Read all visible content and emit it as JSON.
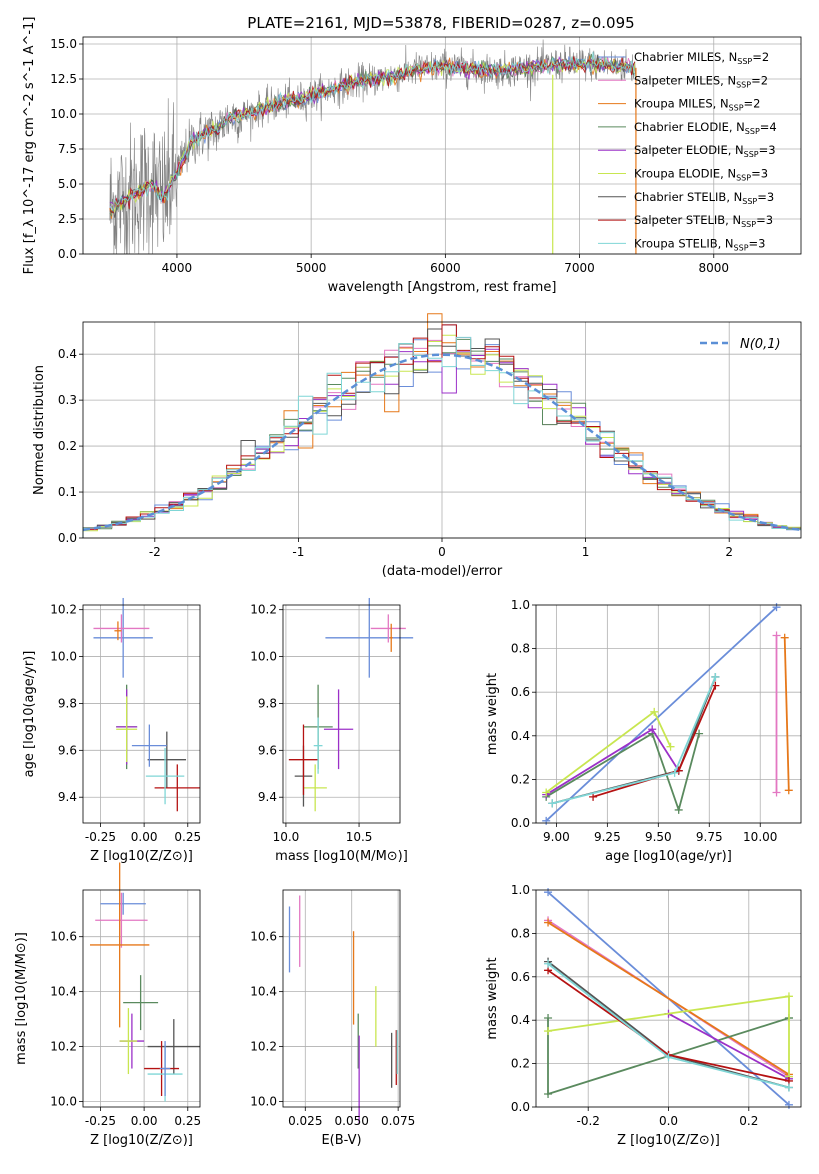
{
  "title": "PLATE=2161, MJD=53878, FIBERID=0287, z=0.095",
  "colors": {
    "chabrier_miles": "#6a8dd9",
    "salpeter_miles": "#e377c2",
    "kroupa_miles": "#e6781a",
    "chabrier_elodie": "#5a8a5e",
    "salpeter_elodie": "#9b30c8",
    "kroupa_elodie": "#c8e650",
    "chabrier_stelib": "#555555",
    "salpeter_stelib": "#b51212",
    "kroupa_stelib": "#7fd6d6"
  },
  "chart_data": [
    {
      "id": "spectrum",
      "type": "line",
      "title": "PLATE=2161, MJD=53878, FIBERID=0287, z=0.095",
      "xlabel": "wavelength [Angstrom, rest frame]",
      "ylabel": "Flux [f_λ 10^-17 erg cm^-2 s^-1 A^-1]",
      "xlim": [
        3300,
        8650
      ],
      "ylim": [
        0,
        15.5
      ],
      "xticks": [
        4000,
        5000,
        6000,
        7000,
        8000
      ],
      "yticks": [
        0.0,
        2.5,
        5.0,
        7.5,
        10.0,
        12.5,
        15.0
      ],
      "legend_position": "top-right",
      "continuum": {
        "x": [
          3500,
          3600,
          3700,
          3800,
          3900,
          4000,
          4100,
          4200,
          4300,
          4400,
          4500,
          4600,
          4700,
          4800,
          4900,
          5000,
          5200,
          5400,
          5600,
          5800,
          6000,
          6200,
          6400,
          6600,
          6800,
          7000,
          7200,
          7400
        ],
        "y": [
          3.2,
          3.8,
          4.4,
          5.0,
          4.0,
          5.8,
          7.9,
          8.6,
          8.9,
          9.8,
          9.9,
          10.3,
          10.6,
          10.9,
          11.0,
          11.3,
          11.9,
          12.4,
          12.7,
          13.2,
          13.4,
          13.2,
          13.1,
          13.3,
          13.5,
          13.6,
          13.5,
          13.3
        ]
      },
      "series": [
        {
          "name": "Chabrier MILES, N_SSP=2",
          "n_ssp": "2"
        },
        {
          "name": "Salpeter MILES, N_SSP=2",
          "n_ssp": "2"
        },
        {
          "name": "Kroupa MILES, N_SSP=2",
          "n_ssp": "2"
        },
        {
          "name": "Chabrier ELODIE, N_SSP=4",
          "n_ssp": "4"
        },
        {
          "name": "Salpeter ELODIE, N_SSP=3",
          "n_ssp": "3"
        },
        {
          "name": "Kroupa ELODIE, N_SSP=3",
          "n_ssp": "3"
        },
        {
          "name": "Chabrier STELIB, N_SSP=3",
          "n_ssp": "3"
        },
        {
          "name": "Salpeter STELIB, N_SSP=3",
          "n_ssp": "3"
        },
        {
          "name": "Kroupa STELIB, N_SSP=3",
          "n_ssp": "3"
        }
      ]
    },
    {
      "id": "residuals",
      "type": "area",
      "xlabel": "(data-model)/error",
      "ylabel": "Normed distribution",
      "xlim": [
        -2.5,
        2.5
      ],
      "ylim": [
        0,
        0.47
      ],
      "xticks": [
        -2,
        -1,
        0,
        1,
        2
      ],
      "yticks": [
        0.0,
        0.1,
        0.2,
        0.3,
        0.4
      ],
      "legend": "N(0,1)",
      "legend_position": "top-right",
      "bin_width": 0.1
    },
    {
      "id": "age-vs-Z",
      "type": "scatter",
      "xlabel": "Z [log10(Z/Z⊙)]",
      "ylabel": "age [log10(age/yr)]",
      "xlim": [
        -0.35,
        0.32
      ],
      "ylim": [
        9.29,
        10.22
      ],
      "xticks": [
        -0.25,
        0.0,
        0.25
      ],
      "yticks": [
        9.4,
        9.6,
        9.8,
        10.0,
        10.2
      ],
      "points": [
        {
          "x": -0.12,
          "y": 10.08,
          "xerr": 0.17,
          "yerr": 0.17
        },
        {
          "x": -0.13,
          "y": 10.12,
          "xerr": 0.16,
          "yerr": 0.06
        },
        {
          "x": -0.15,
          "y": 10.11,
          "xerr": 0.02,
          "yerr": 0.04
        },
        {
          "x": -0.1,
          "y": 9.7,
          "xerr": 0.06,
          "yerr": 0.18
        },
        {
          "x": -0.1,
          "y": 9.7,
          "xerr": 0.06,
          "yerr": 0.16
        },
        {
          "x": -0.1,
          "y": 9.69,
          "xerr": 0.06,
          "yerr": 0.14
        },
        {
          "x": 0.13,
          "y": 9.56,
          "xerr": 0.11,
          "yerr": 0.12
        },
        {
          "x": 0.19,
          "y": 9.44,
          "xerr": 0.13,
          "yerr": 0.1
        },
        {
          "x": 0.12,
          "y": 9.49,
          "xerr": 0.11,
          "yerr": 0.12
        },
        {
          "x": 0.03,
          "y": 9.62,
          "xerr": 0.1,
          "yerr": 0.09
        }
      ]
    },
    {
      "id": "age-vs-mass",
      "type": "scatter",
      "xlabel": "mass [log10(M/M⊙)]",
      "xlim": [
        9.98,
        10.78
      ],
      "ylim": [
        9.29,
        10.22
      ],
      "xticks": [
        10.0,
        10.5
      ],
      "yticks": [
        9.4,
        9.6,
        9.8,
        10.0,
        10.2
      ],
      "points": [
        {
          "x": 10.57,
          "y": 10.08,
          "xerr": 0.3,
          "yerr": 0.17
        },
        {
          "x": 10.7,
          "y": 10.12,
          "xerr": 0.12,
          "yerr": 0.06
        },
        {
          "x": 10.72,
          "y": 10.08,
          "xerr": 0.01,
          "yerr": 0.06
        },
        {
          "x": 10.22,
          "y": 9.7,
          "xerr": 0.1,
          "yerr": 0.18
        },
        {
          "x": 10.36,
          "y": 9.69,
          "xerr": 0.1,
          "yerr": 0.17
        },
        {
          "x": 10.2,
          "y": 9.44,
          "xerr": 0.08,
          "yerr": 0.1
        },
        {
          "x": 10.12,
          "y": 9.49,
          "xerr": 0.06,
          "yerr": 0.13
        },
        {
          "x": 10.12,
          "y": 9.56,
          "xerr": 0.1,
          "yerr": 0.15
        },
        {
          "x": 10.22,
          "y": 9.62,
          "xerr": 0.03,
          "yerr": 0.12
        }
      ]
    },
    {
      "id": "massweight-vs-age",
      "type": "line",
      "xlabel": "age [log10(age/yr)]",
      "ylabel": "mass weight",
      "xlim": [
        8.9,
        10.2
      ],
      "ylim": [
        0.0,
        1.0
      ],
      "xticks": [
        9.0,
        9.25,
        9.5,
        9.75,
        10.0
      ],
      "yticks": [
        0.0,
        0.2,
        0.4,
        0.6,
        0.8,
        1.0
      ],
      "series": [
        {
          "name": "Chabrier MILES",
          "x": [
            8.95,
            10.08
          ],
          "y": [
            0.01,
            0.99
          ]
        },
        {
          "name": "Salpeter MILES",
          "x": [
            10.08,
            10.08
          ],
          "y": [
            0.86,
            0.14
          ]
        },
        {
          "name": "Kroupa MILES",
          "x": [
            10.12,
            10.14
          ],
          "y": [
            0.85,
            0.15
          ]
        },
        {
          "name": "Chabrier ELODIE",
          "x": [
            8.95,
            9.47,
            9.6,
            9.7
          ],
          "y": [
            0.12,
            0.41,
            0.06,
            0.41
          ]
        },
        {
          "name": "Salpeter ELODIE",
          "x": [
            8.95,
            9.47,
            9.6
          ],
          "y": [
            0.13,
            0.43,
            0.24
          ]
        },
        {
          "name": "Kroupa ELODIE",
          "x": [
            8.95,
            9.48,
            9.56
          ],
          "y": [
            0.14,
            0.51,
            0.35
          ]
        },
        {
          "name": "Chabrier STELIB",
          "x": [
            8.98,
            9.6,
            9.78
          ],
          "y": [
            0.09,
            0.24,
            0.67
          ]
        },
        {
          "name": "Salpeter STELIB",
          "x": [
            9.18,
            9.6,
            9.78
          ],
          "y": [
            0.12,
            0.24,
            0.63
          ]
        },
        {
          "name": "Kroupa STELIB",
          "x": [
            8.98,
            9.58,
            9.78
          ],
          "y": [
            0.09,
            0.23,
            0.67
          ]
        }
      ]
    },
    {
      "id": "mass-vs-Z",
      "type": "scatter",
      "xlabel": "Z [log10(Z/Z⊙)]",
      "ylabel": "mass [log10(M/M⊙)]",
      "xlim": [
        -0.35,
        0.32
      ],
      "ylim": [
        9.98,
        10.77
      ],
      "xticks": [
        -0.25,
        0.0,
        0.25
      ],
      "yticks": [
        10.0,
        10.2,
        10.4,
        10.6
      ],
      "points": [
        {
          "x": -0.12,
          "y": 10.72,
          "xerr": 0.13,
          "yerr": 0.04
        },
        {
          "x": -0.13,
          "y": 10.66,
          "xerr": 0.15,
          "yerr": 0.1
        },
        {
          "x": -0.14,
          "y": 10.57,
          "xerr": 0.17,
          "yerr": 0.3
        },
        {
          "x": -0.02,
          "y": 10.36,
          "xerr": 0.1,
          "yerr": 0.1
        },
        {
          "x": -0.07,
          "y": 10.22,
          "xerr": 0.07,
          "yerr": 0.1
        },
        {
          "x": -0.09,
          "y": 10.22,
          "xerr": 0.05,
          "yerr": 0.12
        },
        {
          "x": 0.17,
          "y": 10.2,
          "xerr": 0.15,
          "yerr": 0.1
        },
        {
          "x": 0.1,
          "y": 10.12,
          "xerr": 0.1,
          "yerr": 0.1
        },
        {
          "x": 0.12,
          "y": 10.1,
          "xerr": 0.1,
          "yerr": 0.1
        },
        {
          "x": 0.12,
          "y": 10.12,
          "xerr": 0.03,
          "yerr": 0.1
        }
      ]
    },
    {
      "id": "mass-vs-ebv",
      "type": "scatter",
      "xlabel": "E(B-V)",
      "xlim": [
        0.013,
        0.076
      ],
      "ylim": [
        9.98,
        10.77
      ],
      "xticks": [
        0.025,
        0.05,
        0.075
      ],
      "yticks": [
        10.0,
        10.2,
        10.4,
        10.6
      ],
      "points": [
        {
          "x": 0.0165,
          "y": 10.59,
          "yerr": 0.12
        },
        {
          "x": 0.022,
          "y": 10.62,
          "yerr": 0.13
        },
        {
          "x": 0.051,
          "y": 10.45,
          "yerr": 0.17
        },
        {
          "x": 0.0535,
          "y": 10.22,
          "yerr": 0.1
        },
        {
          "x": 0.054,
          "y": 10.08,
          "yerr": 0.16
        },
        {
          "x": 0.063,
          "y": 10.31,
          "yerr": 0.11
        },
        {
          "x": 0.0715,
          "y": 10.15,
          "yerr": 0.1
        },
        {
          "x": 0.074,
          "y": 10.16,
          "yerr": 0.1
        },
        {
          "x": 0.0745,
          "y": 10.18,
          "yerr": 0.08
        }
      ]
    },
    {
      "id": "massweight-vs-Z",
      "type": "line",
      "xlabel": "Z [log10(Z/Z⊙)]",
      "ylabel": "mass weight",
      "xlim": [
        -0.33,
        0.33
      ],
      "ylim": [
        0.0,
        1.0
      ],
      "xticks": [
        -0.2,
        0.0,
        0.2
      ],
      "yticks": [
        0.0,
        0.2,
        0.4,
        0.6,
        0.8,
        1.0
      ],
      "series": [
        {
          "name": "Chabrier MILES",
          "x": [
            -0.3,
            0.3
          ],
          "y": [
            0.99,
            0.01
          ]
        },
        {
          "name": "Salpeter MILES",
          "x": [
            -0.3,
            0.3
          ],
          "y": [
            0.86,
            0.14
          ]
        },
        {
          "name": "Kroupa MILES",
          "x": [
            -0.3,
            0.3
          ],
          "y": [
            0.85,
            0.15
          ]
        },
        {
          "name": "Chabrier ELODIE",
          "x": [
            -0.3,
            -0.3,
            0.3,
            0.3
          ],
          "y": [
            0.41,
            0.06,
            0.41,
            0.41
          ]
        },
        {
          "name": "Salpeter ELODIE",
          "x": [
            0.0,
            0.3
          ],
          "y": [
            0.43,
            0.13
          ]
        },
        {
          "name": "Kroupa ELODIE",
          "x": [
            -0.3,
            0.3,
            0.3
          ],
          "y": [
            0.35,
            0.51,
            0.14
          ]
        },
        {
          "name": "Chabrier STELIB",
          "x": [
            -0.3,
            0.0,
            0.3
          ],
          "y": [
            0.67,
            0.24,
            0.09
          ]
        },
        {
          "name": "Salpeter STELIB",
          "x": [
            -0.3,
            0.0,
            0.3
          ],
          "y": [
            0.63,
            0.24,
            0.12
          ]
        },
        {
          "name": "Kroupa STELIB",
          "x": [
            -0.3,
            0.0,
            0.3
          ],
          "y": [
            0.66,
            0.23,
            0.09
          ]
        }
      ]
    }
  ]
}
